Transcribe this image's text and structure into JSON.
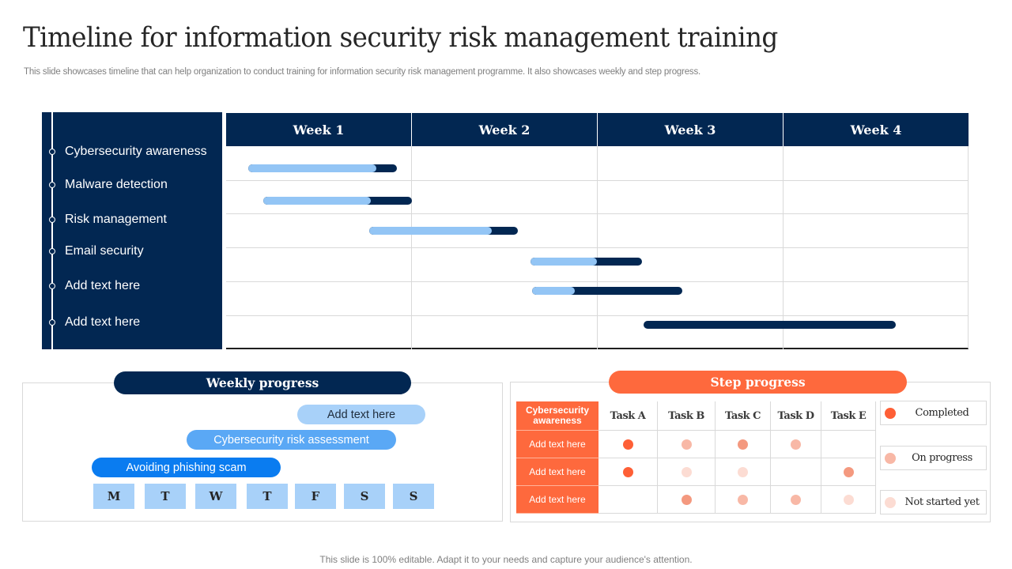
{
  "header": {
    "title": "Timeline for information security risk management training",
    "subtitle": "This slide showcases timeline that can help organization to conduct training for information security risk management programme. It also showcases weekly and step progress."
  },
  "colors": {
    "navy": "#022752",
    "light_blue": "#93c5f5",
    "orange": "#fe693d",
    "completed": "#fe5f36",
    "on_progress": "#f8b8a6",
    "not_started": "#fcdcd3"
  },
  "timeline": {
    "items": [
      {
        "label": "Cybersecurity awareness"
      },
      {
        "label": "Malware detection"
      },
      {
        "label": "Risk management"
      },
      {
        "label": "Email security"
      },
      {
        "label": "Add text here"
      },
      {
        "label": "Add text here"
      }
    ],
    "weeks": [
      "Week 1",
      "Week 2",
      "Week 3",
      "Week 4"
    ]
  },
  "chart_data": {
    "type": "gantt",
    "categories": [
      "Cybersecurity awareness",
      "Malware detection",
      "Risk management",
      "Email security",
      "Add text here",
      "Add text here"
    ],
    "x_axis": [
      "Week 1",
      "Week 2",
      "Week 3",
      "Week 4"
    ],
    "unit": "weeks (0 = start of Week 1, 4 = end of Week 4)",
    "series": [
      {
        "task": "Cybersecurity awareness",
        "start": 0.12,
        "end": 0.92,
        "progress_end": 0.81
      },
      {
        "task": "Malware detection",
        "start": 0.2,
        "end": 1.0,
        "progress_end": 0.78
      },
      {
        "task": "Risk management",
        "start": 0.77,
        "end": 1.57,
        "progress_end": 1.43
      },
      {
        "task": "Email security",
        "start": 1.64,
        "end": 2.24,
        "progress_end": 2.0
      },
      {
        "task": "Add text here",
        "start": 1.65,
        "end": 2.46,
        "progress_end": 1.88
      },
      {
        "task": "Add text here",
        "start": 2.25,
        "end": 3.61,
        "progress_end": 2.25
      }
    ],
    "legend": [
      "completed portion (light blue)",
      "remaining (navy)"
    ]
  },
  "weekly_progress": {
    "title": "Weekly progress",
    "pills": [
      {
        "label": "Add text here"
      },
      {
        "label": "Cybersecurity risk assessment"
      },
      {
        "label": "Avoiding phishing scam"
      }
    ],
    "days": [
      "M",
      "T",
      "W",
      "T",
      "F",
      "S",
      "S"
    ]
  },
  "step_progress": {
    "title": "Step progress",
    "corner_header": "Cybersecurity awareness",
    "columns": [
      "Task A",
      "Task B",
      "Task C",
      "Task D",
      "Task E"
    ],
    "rows": [
      {
        "label": "Add text here",
        "status": [
          "completed",
          "on_progress",
          "mid",
          "on_progress",
          ""
        ]
      },
      {
        "label": "Add text here",
        "status": [
          "completed",
          "not_started",
          "not_started",
          "",
          "mid"
        ]
      },
      {
        "label": "Add text here",
        "status": [
          "",
          "mid",
          "on_progress",
          "on_progress",
          "not_started"
        ]
      }
    ],
    "legend": [
      {
        "label": "Completed",
        "status": "completed"
      },
      {
        "label": "On progress",
        "status": "on_progress"
      },
      {
        "label": "Not started yet",
        "status": "not_started"
      }
    ]
  },
  "footer": {
    "text": "This slide is 100% editable. Adapt it to your needs and capture your audience's attention."
  }
}
